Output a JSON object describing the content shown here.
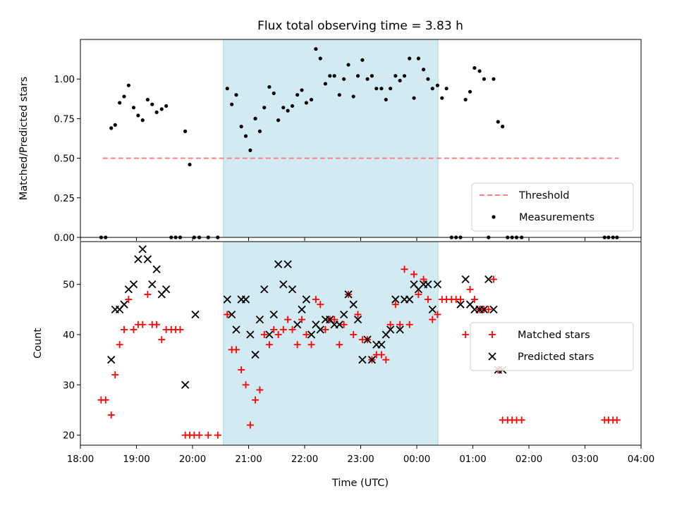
{
  "chart_data": {
    "title": "Flux total observing time = 3.83 h",
    "colors": {
      "threshold": "#ff7f7f",
      "measurement": "#000000",
      "matched": "#ff0000",
      "predicted": "#000000",
      "span": "#add8e6"
    },
    "shared_x": {
      "label": "Time (UTC)",
      "range_hours": [
        18.0,
        28.0
      ],
      "ticks": [
        18,
        19,
        20,
        21,
        22,
        23,
        24,
        25,
        26,
        27,
        28
      ],
      "tick_labels": [
        "18:00",
        "19:00",
        "20:00",
        "21:00",
        "22:00",
        "23:00",
        "00:00",
        "01:00",
        "02:00",
        "03:00",
        "04:00"
      ],
      "highlight_span_hours": [
        20.55,
        24.38
      ]
    },
    "top": {
      "type": "scatter",
      "ylabel": "Matched/Predicted stars",
      "ylim": [
        0,
        1.25
      ],
      "yticks": [
        0.0,
        0.25,
        0.5,
        0.75,
        1.0
      ],
      "ytick_labels": [
        "0.00",
        "0.25",
        "0.50",
        "0.75",
        "1.00"
      ],
      "threshold": {
        "name": "Threshold",
        "value": 0.5,
        "x_range": [
          18.4,
          27.6
        ]
      },
      "legend": [
        "Threshold",
        "Measurements"
      ],
      "series": [
        {
          "name": "Measurements",
          "x": [
            18.37,
            18.45,
            18.55,
            18.62,
            18.7,
            18.78,
            18.86,
            18.95,
            19.03,
            19.11,
            19.2,
            19.28,
            19.36,
            19.45,
            19.53,
            19.62,
            19.7,
            19.78,
            19.87,
            19.95,
            20.03,
            20.12,
            20.28,
            20.45,
            20.62,
            20.7,
            20.78,
            20.87,
            20.95,
            21.03,
            21.12,
            21.2,
            21.28,
            21.37,
            21.45,
            21.53,
            21.62,
            21.7,
            21.78,
            21.87,
            21.95,
            22.03,
            22.12,
            22.2,
            22.28,
            22.37,
            22.45,
            22.53,
            22.62,
            22.7,
            22.78,
            22.87,
            22.95,
            23.03,
            23.12,
            23.2,
            23.28,
            23.37,
            23.45,
            23.53,
            23.62,
            23.7,
            23.78,
            23.87,
            23.95,
            24.03,
            24.12,
            24.2,
            24.28,
            24.37,
            24.45,
            24.53,
            24.62,
            24.7,
            24.78,
            24.87,
            24.95,
            25.03,
            25.12,
            25.2,
            25.28,
            25.37,
            25.45,
            25.53,
            25.62,
            25.7,
            25.78,
            25.87,
            27.35,
            27.42,
            27.5,
            27.57
          ],
          "y": [
            0.0,
            0.0,
            0.69,
            0.71,
            0.85,
            0.89,
            0.96,
            0.82,
            0.77,
            0.74,
            0.87,
            0.84,
            0.79,
            0.81,
            0.83,
            0.0,
            0.0,
            0.0,
            0.67,
            0.46,
            0.0,
            0.0,
            0.0,
            0.0,
            0.94,
            0.84,
            0.9,
            0.7,
            0.64,
            0.55,
            0.75,
            0.67,
            0.82,
            0.95,
            0.91,
            0.74,
            0.82,
            0.8,
            0.83,
            0.9,
            0.93,
            0.85,
            0.87,
            1.19,
            1.13,
            0.97,
            1.02,
            1.02,
            0.9,
            1.0,
            1.09,
            0.89,
            1.02,
            1.12,
            1.0,
            1.02,
            0.94,
            0.94,
            0.87,
            0.94,
            1.02,
            0.99,
            1.02,
            1.13,
            0.88,
            1.13,
            1.06,
            1.0,
            0.94,
            0.96,
            0.88,
            0.94,
            0.0,
            0.0,
            0.0,
            0.87,
            0.92,
            1.07,
            1.05,
            1.0,
            0.0,
            1.0,
            0.73,
            0.7,
            0.0,
            0.0,
            0.0,
            0.0,
            0.0,
            0.0,
            0.0,
            0.0
          ]
        }
      ]
    },
    "bottom": {
      "type": "scatter",
      "ylabel": "Count",
      "ylim": [
        18.0,
        58.5
      ],
      "yticks": [
        20,
        30,
        40,
        50
      ],
      "ytick_labels": [
        "20",
        "30",
        "40",
        "50"
      ],
      "legend": [
        "Matched stars",
        "Predicted stars"
      ],
      "series": [
        {
          "name": "Matched stars",
          "marker": "plus",
          "x": [
            18.37,
            18.45,
            18.55,
            18.62,
            18.7,
            18.78,
            18.86,
            18.95,
            19.03,
            19.11,
            19.2,
            19.28,
            19.36,
            19.45,
            19.53,
            19.62,
            19.7,
            19.78,
            19.87,
            19.95,
            20.03,
            20.12,
            20.28,
            20.45,
            20.62,
            20.7,
            20.78,
            20.87,
            20.95,
            21.03,
            21.12,
            21.2,
            21.28,
            21.37,
            21.45,
            21.53,
            21.62,
            21.7,
            21.78,
            21.87,
            21.95,
            22.03,
            22.12,
            22.2,
            22.28,
            22.37,
            22.45,
            22.53,
            22.62,
            22.7,
            22.78,
            22.87,
            22.95,
            23.03,
            23.12,
            23.2,
            23.28,
            23.37,
            23.45,
            23.53,
            23.62,
            23.7,
            23.78,
            23.87,
            23.95,
            24.03,
            24.12,
            24.2,
            24.28,
            24.37,
            24.45,
            24.53,
            24.62,
            24.7,
            24.78,
            24.87,
            24.95,
            25.03,
            25.12,
            25.2,
            25.28,
            25.37,
            25.45,
            25.53,
            25.62,
            25.7,
            25.78,
            25.87,
            27.35,
            27.42,
            27.5,
            27.57
          ],
          "y": [
            27,
            27,
            24,
            32,
            38,
            41,
            47,
            41,
            42,
            42,
            48,
            42,
            42,
            39,
            41,
            41,
            41,
            41,
            20,
            20,
            20,
            20,
            20,
            20,
            44,
            37,
            37,
            33,
            30,
            22,
            27,
            29,
            40,
            38,
            41,
            40,
            41,
            43,
            41,
            38,
            43,
            40,
            38,
            47,
            46,
            41,
            43,
            43,
            38,
            42,
            48,
            40,
            44,
            39,
            39,
            35,
            36,
            36,
            35,
            42,
            46,
            42,
            53,
            42,
            52,
            48,
            51,
            47,
            43,
            44,
            47,
            47,
            47,
            47,
            47,
            40,
            49,
            47,
            45,
            45,
            45,
            51,
            33,
            23,
            23,
            23,
            23,
            23,
            23,
            23,
            23,
            23
          ]
        },
        {
          "name": "Predicted stars",
          "marker": "x",
          "x": [
            18.55,
            18.62,
            18.7,
            18.78,
            18.86,
            18.95,
            19.03,
            19.11,
            19.2,
            19.28,
            19.36,
            19.45,
            19.53,
            19.87,
            20.05,
            20.62,
            20.7,
            20.78,
            20.87,
            20.95,
            21.03,
            21.12,
            21.2,
            21.28,
            21.37,
            21.45,
            21.53,
            21.62,
            21.7,
            21.78,
            21.87,
            21.95,
            22.03,
            22.12,
            22.2,
            22.28,
            22.37,
            22.45,
            22.53,
            22.62,
            22.7,
            22.78,
            22.87,
            22.95,
            23.03,
            23.12,
            23.2,
            23.28,
            23.37,
            23.45,
            23.53,
            23.62,
            23.7,
            23.78,
            23.87,
            23.95,
            24.03,
            24.12,
            24.2,
            24.28,
            24.37,
            24.78,
            24.87,
            24.95,
            25.03,
            25.12,
            25.2,
            25.28,
            25.37,
            25.45,
            25.53
          ],
          "y": [
            35,
            45,
            45,
            46,
            49,
            50,
            55,
            57,
            55,
            50,
            53,
            48,
            49,
            30,
            44,
            47,
            44,
            41,
            47,
            47,
            40,
            36,
            43,
            49,
            40,
            44,
            54,
            50,
            54,
            49,
            42,
            45,
            47,
            40,
            42,
            41,
            43,
            43,
            42,
            42,
            44,
            48,
            46,
            43,
            35,
            39,
            35,
            38,
            38,
            40,
            41,
            47,
            41,
            47,
            47,
            50,
            49,
            50,
            50,
            45,
            50,
            46,
            51,
            46,
            45,
            45,
            45,
            51,
            45,
            33,
            33
          ]
        }
      ]
    }
  }
}
